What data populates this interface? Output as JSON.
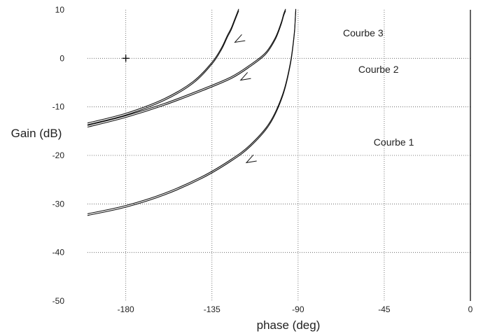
{
  "chart_data": {
    "type": "line",
    "title": "",
    "xlabel": "phase (deg)",
    "ylabel": "Gain (dB)",
    "xlim": [
      -200,
      0
    ],
    "ylim": [
      -50,
      10
    ],
    "x_ticks": [
      -180,
      -135,
      -90,
      -45,
      0
    ],
    "y_ticks": [
      10,
      0,
      -10,
      -20,
      -30,
      -40,
      -50
    ],
    "grid": true,
    "marker": {
      "x": -180,
      "y": 0,
      "symbol": "plus"
    },
    "series": [
      {
        "name": "Courbe 1",
        "x": [
          -200,
          -180,
          -160,
          -140,
          -125,
          -115,
          -105,
          -98,
          -94,
          -92,
          -91.5,
          -91.2
        ],
        "y": [
          -32.2,
          -30.5,
          -28,
          -24.5,
          -21,
          -18,
          -13.5,
          -7.5,
          -1,
          5,
          8,
          10
        ],
        "arrow": {
          "x": -117,
          "y": -21.5
        }
      },
      {
        "name": "Courbe 2",
        "x": [
          -200,
          -180,
          -160,
          -140,
          -125,
          -115,
          -107,
          -102,
          -99,
          -97.5,
          -96.5
        ],
        "y": [
          -14,
          -12,
          -9.5,
          -6.5,
          -4,
          -1.5,
          1,
          4,
          7,
          9,
          10
        ],
        "arrow": {
          "x": -120,
          "y": -4.5
        }
      },
      {
        "name": "Courbe 3",
        "x": [
          -200,
          -180,
          -160,
          -145,
          -135,
          -130,
          -127,
          -125,
          -123,
          -121
        ],
        "y": [
          -13.5,
          -11.5,
          -8.5,
          -5,
          -1,
          2,
          4.5,
          6,
          8,
          10
        ],
        "arrow": {
          "x": -123,
          "y": 3.3
        }
      }
    ],
    "annotations": [
      {
        "text": "Courbe 3",
        "x": -56,
        "y": 4.5
      },
      {
        "text": "Courbe 2",
        "x": -48,
        "y": -3
      },
      {
        "text": "Courbe 1",
        "x": -40,
        "y": -18
      }
    ]
  }
}
